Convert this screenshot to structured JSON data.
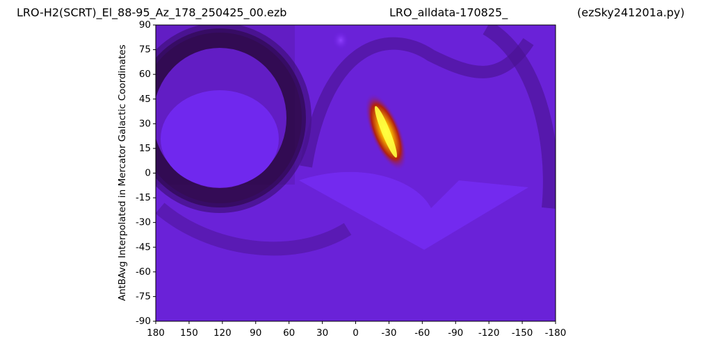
{
  "chart_data": {
    "type": "contour",
    "title_left": "LRO-H2(SCRT)_El_88-95_Az_178_250425_00.ezb",
    "title_center": "LRO_alldata-170825_",
    "title_right": "(ezSky241201a.py)",
    "y_label": "AntBAvg Interpolated in Mercator Galactic Coordinates",
    "xlim": [
      180,
      -180
    ],
    "xticks": [
      180,
      150,
      120,
      90,
      60,
      30,
      0,
      -30,
      -60,
      -90,
      -120,
      -150,
      -180
    ],
    "ylim": [
      -90,
      90
    ],
    "yticks": [
      90,
      75,
      60,
      45,
      30,
      15,
      0,
      -15,
      -30,
      -45,
      -60,
      -75,
      -90
    ]
  }
}
